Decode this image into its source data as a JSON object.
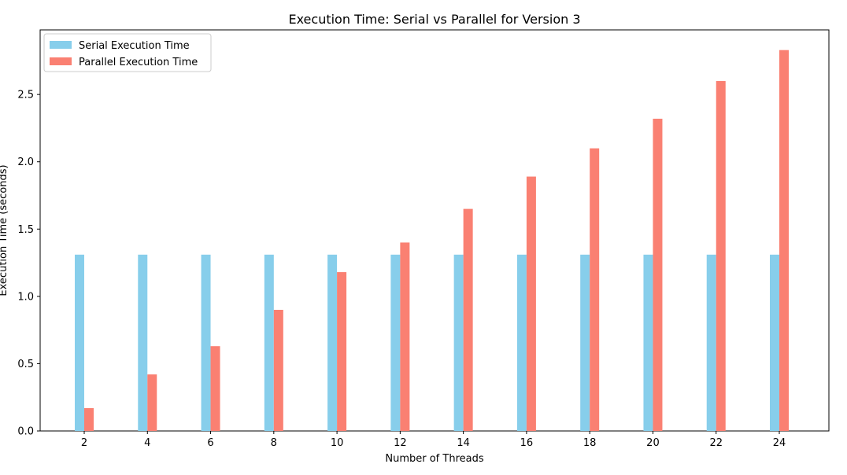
{
  "chart_data": {
    "type": "bar",
    "title": "Execution Time: Serial vs Parallel for Version 3",
    "xlabel": "Number of Threads",
    "ylabel": "Execution Time (seconds)",
    "categories": [
      2,
      4,
      6,
      8,
      10,
      12,
      14,
      16,
      18,
      20,
      22,
      24
    ],
    "series": [
      {
        "name": "Serial Execution Time",
        "color": "#87ceeb",
        "values": [
          1.31,
          1.31,
          1.31,
          1.31,
          1.31,
          1.31,
          1.31,
          1.31,
          1.31,
          1.31,
          1.31,
          1.31
        ]
      },
      {
        "name": "Parallel Execution Time",
        "color": "#fa8072",
        "values": [
          0.17,
          0.42,
          0.63,
          0.9,
          1.18,
          1.4,
          1.65,
          1.89,
          2.1,
          2.32,
          2.6,
          2.83
        ]
      }
    ],
    "ylim": [
      0,
      2.98
    ],
    "yticks": [
      0.0,
      0.5,
      1.0,
      1.5,
      2.0,
      2.5
    ],
    "ytick_labels": [
      "0.0",
      "0.5",
      "1.0",
      "1.5",
      "2.0",
      "2.5"
    ],
    "grid": false,
    "legend_position": "top-left"
  }
}
